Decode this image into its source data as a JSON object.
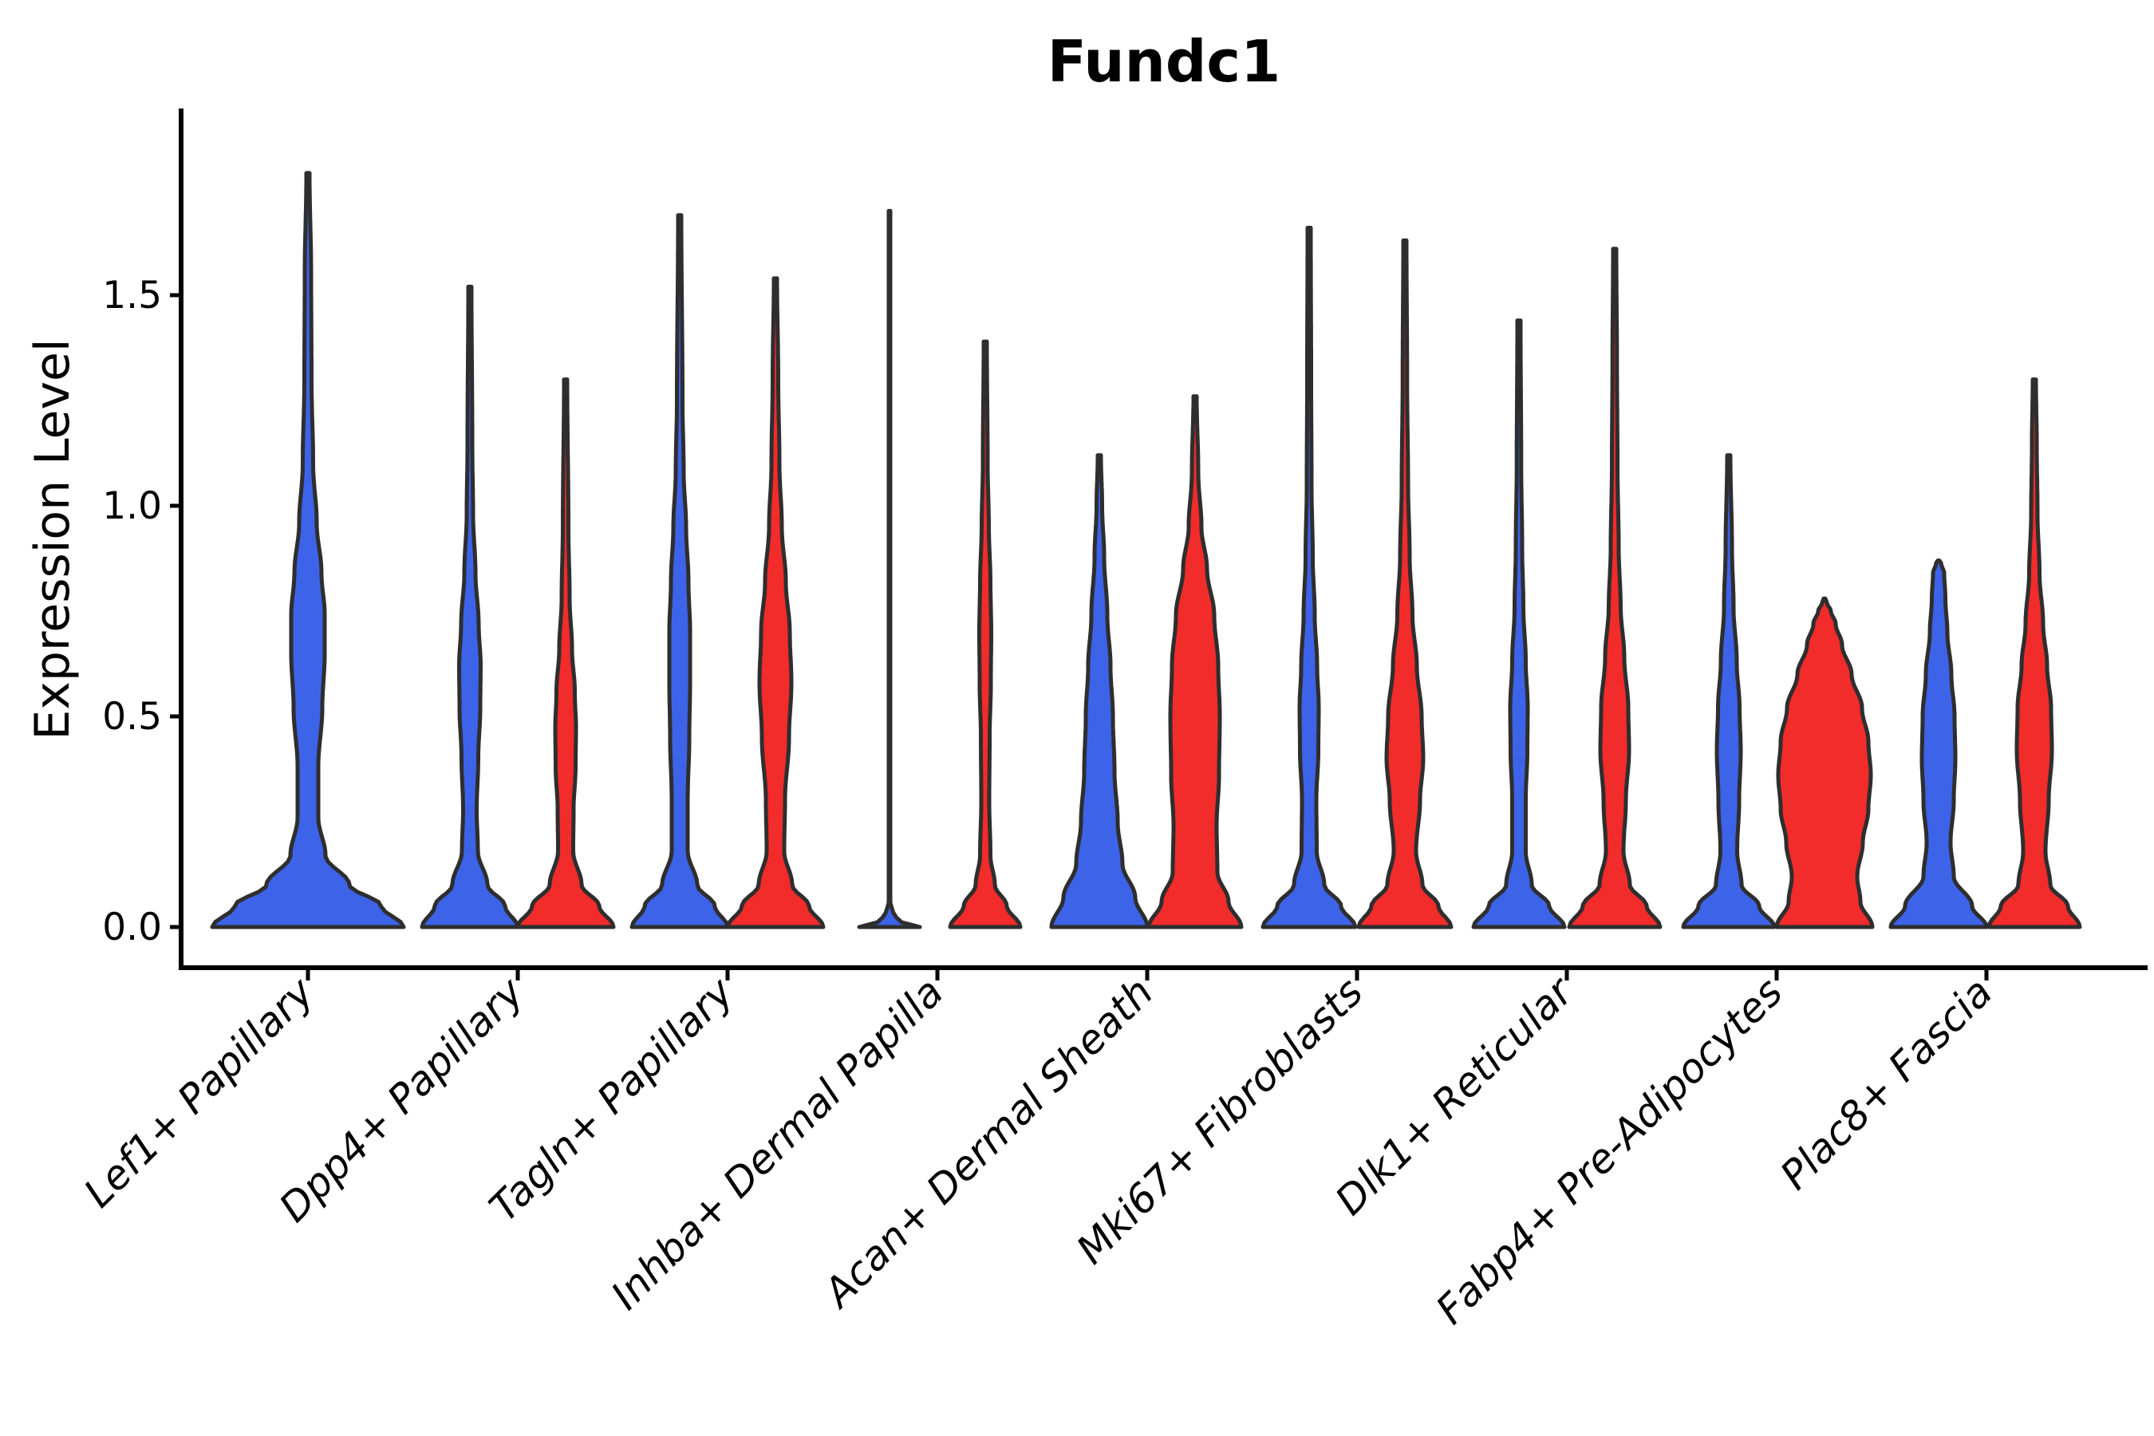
{
  "figure": {
    "background": "#ffffff"
  },
  "chart_data": {
    "type": "violin",
    "title": "Fundc1",
    "ylabel": "Expression Level",
    "xlabel": "",
    "yticks": [
      "0.0",
      "0.5",
      "1.0",
      "1.5"
    ],
    "ylim": [
      -0.09,
      1.94
    ],
    "grid": false,
    "legend": "none",
    "x_tick_rotation": 45,
    "colors": {
      "blue_fill": "#3D63E8",
      "red_fill": "#F22B2B",
      "outline": "#2E2E2E",
      "axis": "#000000",
      "text": "#000000"
    },
    "categories": [
      "Lef1+ Papillary",
      "Dpp4+ Papillary",
      "Tagln+ Papillary",
      "Inhba+ Dermal Papilla",
      "Acan+ Dermal Sheath",
      "Mki67+ Fibroblasts",
      "Dlk1+ Reticular",
      "Fabp4+ Pre-Adipocytes",
      "Plac8+ Fascia"
    ],
    "groups": [
      {
        "category": "Lef1+ Papillary",
        "violins": [
          {
            "color": "blue",
            "max_expression": 1.79,
            "full_width": true,
            "profile": [
              [
                0,
                120
              ],
              [
                0.05,
                92
              ],
              [
                0.1,
                52
              ],
              [
                0.17,
                22
              ],
              [
                0.26,
                13
              ],
              [
                0.38,
                13
              ],
              [
                0.52,
                18
              ],
              [
                0.65,
                21
              ],
              [
                0.74,
                21
              ],
              [
                0.84,
                17
              ],
              [
                0.96,
                11
              ],
              [
                1.1,
                6.5
              ],
              [
                1.3,
                4.5
              ],
              [
                1.55,
                4
              ],
              [
                1.79,
                2
              ]
            ]
          }
        ]
      },
      {
        "category": "Dpp4+ Papillary",
        "violins": [
          {
            "color": "blue",
            "max_expression": 1.52,
            "full_width": false,
            "profile": [
              [
                0,
                60
              ],
              [
                0.05,
                44
              ],
              [
                0.1,
                22
              ],
              [
                0.18,
                10
              ],
              [
                0.28,
                8.5
              ],
              [
                0.4,
                10.5
              ],
              [
                0.52,
                13
              ],
              [
                0.62,
                13.5
              ],
              [
                0.72,
                11
              ],
              [
                0.84,
                7
              ],
              [
                0.98,
                4
              ],
              [
                1.15,
                3
              ],
              [
                1.52,
                2
              ]
            ]
          },
          {
            "color": "red",
            "max_expression": 1.3,
            "full_width": false,
            "profile": [
              [
                0,
                60
              ],
              [
                0.05,
                42
              ],
              [
                0.1,
                20
              ],
              [
                0.18,
                9.5
              ],
              [
                0.28,
                10
              ],
              [
                0.38,
                12.5
              ],
              [
                0.47,
                13
              ],
              [
                0.56,
                11.5
              ],
              [
                0.66,
                8
              ],
              [
                0.78,
                5
              ],
              [
                0.95,
                3.5
              ],
              [
                1.3,
                2
              ]
            ]
          }
        ]
      },
      {
        "category": "Tagln+ Papillary",
        "violins": [
          {
            "color": "blue",
            "max_expression": 1.69,
            "full_width": false,
            "profile": [
              [
                0,
                60
              ],
              [
                0.05,
                44
              ],
              [
                0.1,
                22
              ],
              [
                0.18,
                10
              ],
              [
                0.3,
                10
              ],
              [
                0.45,
                12
              ],
              [
                0.58,
                13
              ],
              [
                0.7,
                13
              ],
              [
                0.82,
                11
              ],
              [
                0.95,
                8
              ],
              [
                1.08,
                5
              ],
              [
                1.25,
                3.5
              ],
              [
                1.69,
                2
              ]
            ]
          },
          {
            "color": "red",
            "max_expression": 1.54,
            "full_width": false,
            "profile": [
              [
                0,
                60
              ],
              [
                0.05,
                42
              ],
              [
                0.1,
                21
              ],
              [
                0.18,
                11
              ],
              [
                0.3,
                12
              ],
              [
                0.45,
                17
              ],
              [
                0.58,
                20
              ],
              [
                0.7,
                18
              ],
              [
                0.82,
                13
              ],
              [
                0.95,
                8
              ],
              [
                1.1,
                5
              ],
              [
                1.3,
                3.5
              ],
              [
                1.54,
                2
              ]
            ]
          }
        ]
      },
      {
        "category": "Inhba+ Dermal Papilla",
        "violins": [
          {
            "color": "blue",
            "max_expression": 1.7,
            "full_width": false,
            "profile": [
              [
                0,
                38
              ],
              [
                0.012,
                15
              ],
              [
                0.03,
                5
              ],
              [
                0.06,
                1
              ],
              [
                1.7,
                1
              ]
            ]
          },
          {
            "color": "red",
            "max_expression": 1.39,
            "full_width": false,
            "profile": [
              [
                0,
                44
              ],
              [
                0.05,
                27
              ],
              [
                0.1,
                12
              ],
              [
                0.17,
                6.5
              ],
              [
                0.3,
                5
              ],
              [
                0.45,
                5.5
              ],
              [
                0.58,
                7
              ],
              [
                0.7,
                7.5
              ],
              [
                0.82,
                6.5
              ],
              [
                0.95,
                4.5
              ],
              [
                1.1,
                3
              ],
              [
                1.39,
                2
              ]
            ]
          }
        ]
      },
      {
        "category": "Acan+ Dermal Sheath",
        "violins": [
          {
            "color": "blue",
            "max_expression": 1.12,
            "full_width": false,
            "profile": [
              [
                0,
                60
              ],
              [
                0.07,
                45
              ],
              [
                0.15,
                29
              ],
              [
                0.25,
                23
              ],
              [
                0.37,
                19
              ],
              [
                0.5,
                17
              ],
              [
                0.62,
                14
              ],
              [
                0.74,
                10
              ],
              [
                0.88,
                6
              ],
              [
                1.0,
                3.5
              ],
              [
                1.12,
                2
              ]
            ]
          },
          {
            "color": "red",
            "max_expression": 1.26,
            "full_width": false,
            "profile": [
              [
                0,
                58
              ],
              [
                0.06,
                42
              ],
              [
                0.13,
                28
              ],
              [
                0.24,
                27
              ],
              [
                0.36,
                30
              ],
              [
                0.5,
                31
              ],
              [
                0.62,
                29
              ],
              [
                0.74,
                24
              ],
              [
                0.85,
                15
              ],
              [
                0.95,
                8
              ],
              [
                1.08,
                4
              ],
              [
                1.26,
                2
              ]
            ]
          }
        ]
      },
      {
        "category": "Mki67+ Fibroblasts",
        "violins": [
          {
            "color": "blue",
            "max_expression": 1.66,
            "full_width": false,
            "profile": [
              [
                0,
                58
              ],
              [
                0.05,
                40
              ],
              [
                0.1,
                19
              ],
              [
                0.18,
                9.5
              ],
              [
                0.3,
                9
              ],
              [
                0.42,
                11.5
              ],
              [
                0.52,
                12
              ],
              [
                0.62,
                10
              ],
              [
                0.74,
                7
              ],
              [
                0.88,
                4.5
              ],
              [
                1.05,
                3
              ],
              [
                1.3,
                2.5
              ],
              [
                1.66,
                2
              ]
            ]
          },
          {
            "color": "red",
            "max_expression": 1.63,
            "full_width": false,
            "profile": [
              [
                0,
                58
              ],
              [
                0.05,
                42
              ],
              [
                0.1,
                22
              ],
              [
                0.18,
                14
              ],
              [
                0.3,
                19
              ],
              [
                0.4,
                23
              ],
              [
                0.5,
                21
              ],
              [
                0.62,
                15
              ],
              [
                0.74,
                9.5
              ],
              [
                0.88,
                6
              ],
              [
                1.05,
                4
              ],
              [
                1.3,
                2.8
              ],
              [
                1.63,
                2
              ]
            ]
          }
        ]
      },
      {
        "category": "Dlk1+ Reticular",
        "violins": [
          {
            "color": "blue",
            "max_expression": 1.44,
            "full_width": false,
            "profile": [
              [
                0,
                57
              ],
              [
                0.05,
                38
              ],
              [
                0.1,
                16
              ],
              [
                0.18,
                8.5
              ],
              [
                0.3,
                8.5
              ],
              [
                0.42,
                10.5
              ],
              [
                0.52,
                11
              ],
              [
                0.63,
                8.5
              ],
              [
                0.76,
                5.5
              ],
              [
                0.9,
                4
              ],
              [
                1.1,
                2.8
              ],
              [
                1.44,
                2
              ]
            ]
          },
          {
            "color": "red",
            "max_expression": 1.61,
            "full_width": false,
            "profile": [
              [
                0,
                57
              ],
              [
                0.05,
                40
              ],
              [
                0.1,
                19
              ],
              [
                0.18,
                11
              ],
              [
                0.3,
                14
              ],
              [
                0.42,
                18
              ],
              [
                0.52,
                17
              ],
              [
                0.64,
                12
              ],
              [
                0.76,
                7.5
              ],
              [
                0.9,
                5
              ],
              [
                1.1,
                3.5
              ],
              [
                1.35,
                2.8
              ],
              [
                1.61,
                2
              ]
            ]
          }
        ]
      },
      {
        "category": "Fabp4+ Pre-Adipocytes",
        "violins": [
          {
            "color": "blue",
            "max_expression": 1.12,
            "full_width": false,
            "profile": [
              [
                0,
                57
              ],
              [
                0.05,
                38
              ],
              [
                0.1,
                16
              ],
              [
                0.18,
                10.5
              ],
              [
                0.3,
                13
              ],
              [
                0.42,
                15
              ],
              [
                0.52,
                13.5
              ],
              [
                0.63,
                10
              ],
              [
                0.76,
                6
              ],
              [
                0.9,
                4
              ],
              [
                1.12,
                2
              ]
            ]
          },
          {
            "color": "red",
            "max_expression": 0.76,
            "full_width": false,
            "profile": [
              [
                0,
                60
              ],
              [
                0.06,
                45
              ],
              [
                0.12,
                41
              ],
              [
                0.2,
                48
              ],
              [
                0.28,
                55
              ],
              [
                0.36,
                58
              ],
              [
                0.44,
                55
              ],
              [
                0.52,
                47
              ],
              [
                0.6,
                34
              ],
              [
                0.67,
                22
              ],
              [
                0.72,
                14
              ],
              [
                0.75,
                8
              ],
              [
                0.77,
                3
              ],
              [
                0.78,
                1
              ]
            ]
          }
        ]
      },
      {
        "category": "Plac8+ Fascia",
        "violins": [
          {
            "color": "blue",
            "max_expression": 0.85,
            "full_width": false,
            "profile": [
              [
                0,
                60
              ],
              [
                0.05,
                42
              ],
              [
                0.12,
                19
              ],
              [
                0.2,
                15
              ],
              [
                0.3,
                19
              ],
              [
                0.4,
                21
              ],
              [
                0.5,
                20
              ],
              [
                0.6,
                16
              ],
              [
                0.7,
                11
              ],
              [
                0.78,
                8.5
              ],
              [
                0.84,
                7
              ],
              [
                0.862,
                3.5
              ],
              [
                0.87,
                1
              ]
            ]
          },
          {
            "color": "red",
            "max_expression": 1.3,
            "full_width": false,
            "profile": [
              [
                0,
                57
              ],
              [
                0.05,
                42
              ],
              [
                0.1,
                20
              ],
              [
                0.18,
                14
              ],
              [
                0.3,
                18
              ],
              [
                0.42,
                22
              ],
              [
                0.52,
                21
              ],
              [
                0.62,
                16
              ],
              [
                0.72,
                11
              ],
              [
                0.84,
                6.5
              ],
              [
                0.98,
                4
              ],
              [
                1.15,
                3
              ],
              [
                1.3,
                2
              ]
            ]
          }
        ]
      }
    ]
  }
}
